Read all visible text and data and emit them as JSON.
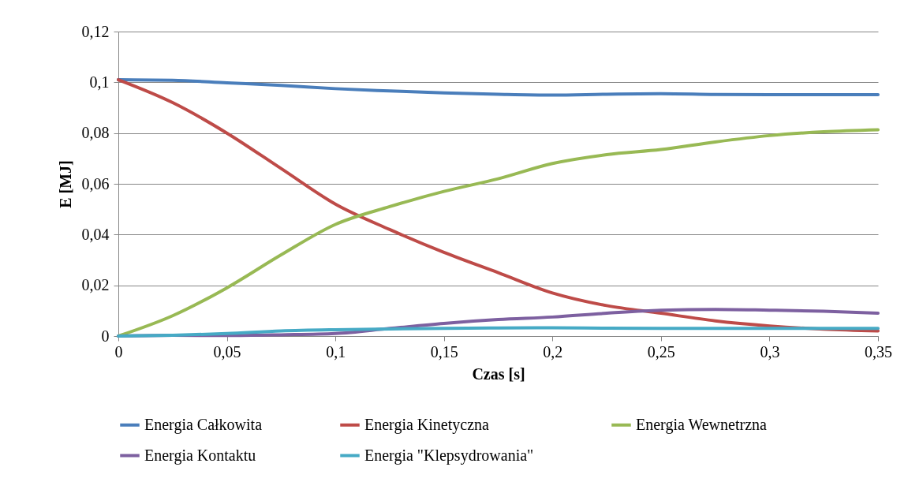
{
  "chart_data": {
    "type": "line",
    "xlabel": "Czas [s]",
    "ylabel": "E [MJ]",
    "xlim": [
      0,
      0.35
    ],
    "xticks": [
      0,
      {
        "value": 0.05,
        "label": "0,05"
      },
      {
        "value": 0.1,
        "label": "0,1"
      },
      {
        "value": 0.15,
        "label": "0,15"
      },
      {
        "value": 0.2,
        "label": "0,2"
      },
      {
        "value": 0.25,
        "label": "0,25"
      },
      {
        "value": 0.3,
        "label": "0,3"
      },
      {
        "value": 0.35,
        "label": "0,35"
      }
    ],
    "ylim": [
      0,
      0.12
    ],
    "yticks": [
      0,
      {
        "value": 0.02,
        "label": "0,02"
      },
      {
        "value": 0.04,
        "label": "0,04"
      },
      {
        "value": 0.06,
        "label": "0,06"
      },
      {
        "value": 0.08,
        "label": "0,08"
      },
      {
        "value": 0.1,
        "label": "0,1"
      },
      {
        "value": 0.12,
        "label": "0,12"
      }
    ],
    "x": [
      0,
      0.025,
      0.05,
      0.075,
      0.1,
      0.125,
      0.15,
      0.175,
      0.2,
      0.225,
      0.25,
      0.275,
      0.3,
      0.325,
      0.35
    ],
    "series": [
      {
        "name": "Energia Całkowita",
        "color": "#4a7ebb",
        "values": [
          0.101,
          0.1008,
          0.0998,
          0.0988,
          0.0975,
          0.0966,
          0.0958,
          0.0953,
          0.095,
          0.0953,
          0.0955,
          0.0952,
          0.0951,
          0.0951,
          0.0951
        ]
      },
      {
        "name": "Energia Kinetyczna",
        "color": "#be4b48",
        "values": [
          0.101,
          0.092,
          0.08,
          0.066,
          0.052,
          0.042,
          0.033,
          0.025,
          0.017,
          0.012,
          0.009,
          0.006,
          0.004,
          0.0027,
          0.002
        ]
      },
      {
        "name": "Energia Wewnetrzna",
        "color": "#98b954",
        "values": [
          0,
          0.008,
          0.019,
          0.032,
          0.044,
          0.051,
          0.057,
          0.062,
          0.068,
          0.0715,
          0.0735,
          0.0765,
          0.079,
          0.0805,
          0.0813
        ]
      },
      {
        "name": "Energia Kontaktu",
        "color": "#7d60a0",
        "values": [
          0,
          0.0003,
          0.0002,
          0.0005,
          0.001,
          0.003,
          0.005,
          0.0065,
          0.0075,
          0.009,
          0.0102,
          0.0105,
          0.0102,
          0.0098,
          0.009
        ]
      },
      {
        "name": "Energia \"Klepsydrowania\"",
        "color": "#46aac5",
        "values": [
          0,
          0.0003,
          0.001,
          0.002,
          0.0025,
          0.0028,
          0.003,
          0.0032,
          0.0033,
          0.0031,
          0.003,
          0.003,
          0.003,
          0.003,
          0.003
        ]
      }
    ],
    "grid": "y",
    "legend": "bottom",
    "marker": "none",
    "line_style": "solid"
  }
}
